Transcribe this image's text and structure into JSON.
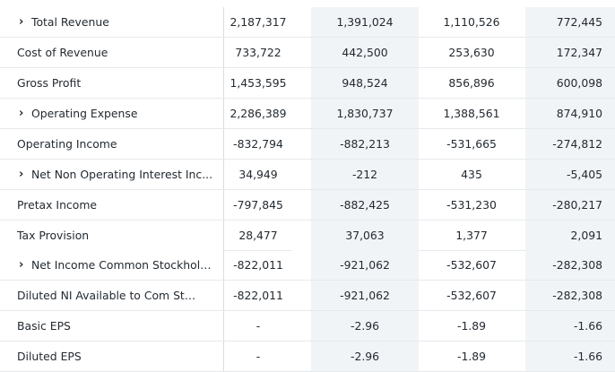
{
  "rows": [
    {
      "label": "Total Revenue",
      "expandable": true,
      "values": [
        "2,187,317",
        "1,391,024",
        "1,110,526",
        "772,445"
      ]
    },
    {
      "label": "Cost of Revenue",
      "expandable": false,
      "values": [
        "733,722",
        "442,500",
        "253,630",
        "172,347"
      ]
    },
    {
      "label": "Gross Profit",
      "expandable": false,
      "values": [
        "1,453,595",
        "948,524",
        "856,896",
        "600,098"
      ]
    },
    {
      "label": "Operating Expense",
      "expandable": true,
      "values": [
        "2,286,389",
        "1,830,737",
        "1,388,561",
        "874,910"
      ]
    },
    {
      "label": "Operating Income",
      "expandable": false,
      "values": [
        "-832,794",
        "-882,213",
        "-531,665",
        "-274,812"
      ]
    },
    {
      "label": "Net Non Operating Interest Inc...",
      "expandable": true,
      "values": [
        "34,949",
        "-212",
        "435",
        "-5,405"
      ]
    },
    {
      "label": "Pretax Income",
      "expandable": false,
      "values": [
        "-797,845",
        "-882,425",
        "-531,230",
        "-280,217"
      ]
    },
    {
      "label": "Tax Provision",
      "expandable": false,
      "values": [
        "28,477",
        "37,063",
        "1,377",
        "2,091"
      ]
    },
    {
      "label": "Net Income Common Stockhold...",
      "expandable": true,
      "values": [
        "-822,011",
        "-921,062",
        "-532,607",
        "-282,308"
      ]
    },
    {
      "label": "Diluted NI Available to Com Stock...",
      "expandable": false,
      "values": [
        "-822,011",
        "-921,062",
        "-532,607",
        "-282,308"
      ]
    },
    {
      "label": "Basic EPS",
      "expandable": false,
      "values": [
        "-",
        "-2.96",
        "-1.89",
        "-1.66"
      ]
    },
    {
      "label": "Diluted EPS",
      "expandable": false,
      "values": [
        "-",
        "-2.96",
        "-1.89",
        "-1.66"
      ]
    }
  ],
  "icons": {
    "expand": "chevron-right-icon"
  }
}
